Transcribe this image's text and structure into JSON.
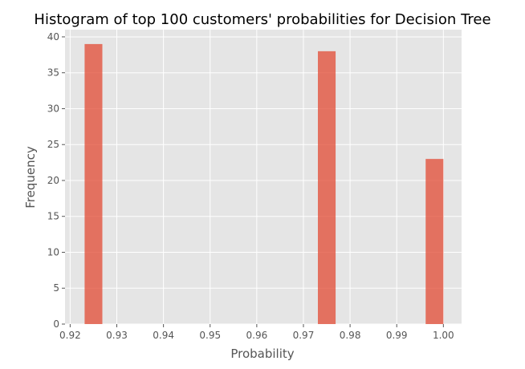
{
  "chart_data": {
    "type": "bar",
    "title": "Histogram of top 100 customers' probabilities for Decision Tree",
    "xlabel": "Probability",
    "ylabel": "Frequency",
    "xlim": [
      0.9189,
      1.0039
    ],
    "ylim": [
      0,
      41
    ],
    "grid": true,
    "x_ticks": [
      {
        "value": 0.92,
        "label": "0.92"
      },
      {
        "value": 0.93,
        "label": "0.93"
      },
      {
        "value": 0.94,
        "label": "0.94"
      },
      {
        "value": 0.95,
        "label": "0.95"
      },
      {
        "value": 0.96,
        "label": "0.96"
      },
      {
        "value": 0.97,
        "label": "0.97"
      },
      {
        "value": 0.98,
        "label": "0.98"
      },
      {
        "value": 0.99,
        "label": "0.99"
      },
      {
        "value": 1.0,
        "label": "1.00"
      }
    ],
    "y_ticks": [
      {
        "value": 0,
        "label": "0"
      },
      {
        "value": 5,
        "label": "5"
      },
      {
        "value": 10,
        "label": "10"
      },
      {
        "value": 15,
        "label": "15"
      },
      {
        "value": 20,
        "label": "20"
      },
      {
        "value": 25,
        "label": "25"
      },
      {
        "value": 30,
        "label": "30"
      },
      {
        "value": 35,
        "label": "35"
      },
      {
        "value": 40,
        "label": "40"
      }
    ],
    "bins": [
      {
        "start": 0.9231,
        "end": 0.9269,
        "count": 39
      },
      {
        "start": 0.9731,
        "end": 0.9769,
        "count": 38
      },
      {
        "start": 0.9962,
        "end": 1.0,
        "count": 23
      }
    ],
    "colors": {
      "bar": "#e24a33",
      "plot_background": "#e5e5e5"
    }
  }
}
